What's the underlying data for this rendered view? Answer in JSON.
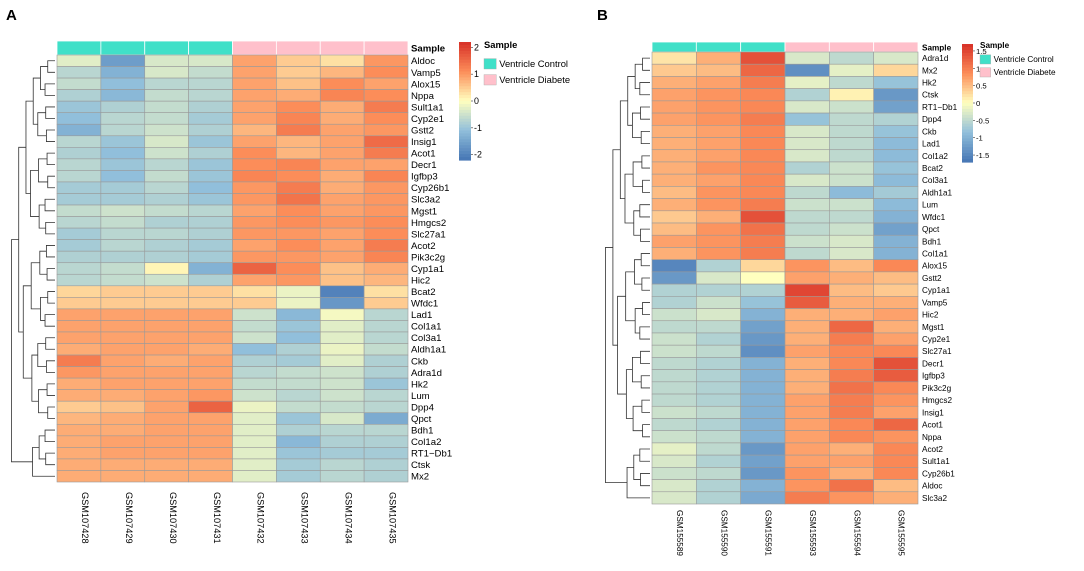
{
  "chart_data": [
    {
      "type": "heatmap",
      "panel_label": "A",
      "columns": [
        "GSM107428",
        "GSM107429",
        "GSM107430",
        "GSM107431",
        "GSM107432",
        "GSM107433",
        "GSM107434",
        "GSM107435"
      ],
      "column_groups": [
        "Ventricle Control",
        "Ventricle Control",
        "Ventricle Control",
        "Ventricle Control",
        "Ventricle Diabete",
        "Ventricle Diabete",
        "Ventricle Diabete",
        "Ventricle Diabete"
      ],
      "annotation_title": "Sample",
      "legend_title": "Sample",
      "legend_entries": [
        {
          "label": "Ventricle Control",
          "color": "#40e0c8"
        },
        {
          "label": "Ventricle Diabete",
          "color": "#ffc0cb"
        }
      ],
      "colorbar": {
        "ticks": [
          2,
          1,
          0,
          -1,
          -2
        ],
        "range": [
          -2.2,
          2.2
        ]
      },
      "rows": [
        "Aldoc",
        "Vamp5",
        "Alox15",
        "Nppa",
        "Sult1a1",
        "Cyp2e1",
        "Gstt2",
        "Insig1",
        "Acot1",
        "Decr1",
        "Igfbp3",
        "Cyp26b1",
        "Slc3a2",
        "Mgst1",
        "Hmgcs2",
        "Slc27a1",
        "Acot2",
        "Pik3c2g",
        "Cyp1a1",
        "Hic2",
        "Bcat2",
        "Wfdc1",
        "Lad1",
        "Col1a1",
        "Col3a1",
        "Aldh1a1",
        "Ckb",
        "Adra1d",
        "Hk2",
        "Lum",
        "Dpp4",
        "Qpct",
        "Bdh1",
        "Col1a2",
        "RT1−Db1",
        "Ctsk",
        "Mx2"
      ],
      "values": [
        [
          -0.3,
          -1.6,
          -0.4,
          -0.4,
          0.9,
          0.5,
          0.3,
          1.0
        ],
        [
          -0.7,
          -1.3,
          -0.4,
          -0.6,
          0.9,
          0.5,
          0.7,
          1.1
        ],
        [
          -0.6,
          -1.1,
          -0.7,
          -0.7,
          0.9,
          0.6,
          1.1,
          0.9
        ],
        [
          -0.8,
          -1.2,
          -0.6,
          -0.7,
          0.9,
          0.8,
          1.2,
          1.1
        ],
        [
          -1.0,
          -0.8,
          -0.6,
          -0.8,
          0.9,
          1.1,
          0.8,
          1.3
        ],
        [
          -1.1,
          -0.7,
          -0.6,
          -0.9,
          0.9,
          1.2,
          0.8,
          1.1
        ],
        [
          -1.3,
          -0.7,
          -0.5,
          -0.8,
          0.7,
          1.3,
          0.9,
          1.0
        ],
        [
          -0.7,
          -1.0,
          -0.4,
          -1.0,
          0.9,
          0.7,
          0.9,
          1.5
        ],
        [
          -0.8,
          -1.1,
          -0.5,
          -0.8,
          1.1,
          0.7,
          0.9,
          1.3
        ],
        [
          -0.7,
          -1.0,
          -0.7,
          -1.0,
          1.1,
          1.2,
          0.9,
          0.9
        ],
        [
          -0.7,
          -1.1,
          -0.6,
          -1.0,
          1.2,
          1.1,
          0.8,
          1.2
        ],
        [
          -0.9,
          -0.9,
          -0.7,
          -1.1,
          1.0,
          1.3,
          0.8,
          1.0
        ],
        [
          -0.9,
          -0.9,
          -0.8,
          -1.0,
          1.0,
          1.4,
          0.9,
          1.0
        ],
        [
          -0.6,
          -0.5,
          -0.6,
          -0.7,
          0.9,
          1.1,
          0.9,
          1.0
        ],
        [
          -0.7,
          -0.6,
          -0.8,
          -0.8,
          1.0,
          1.1,
          1.0,
          1.1
        ],
        [
          -0.9,
          -0.7,
          -0.7,
          -0.8,
          1.0,
          1.0,
          0.9,
          1.1
        ],
        [
          -0.9,
          -0.7,
          -0.8,
          -0.9,
          0.9,
          1.1,
          0.9,
          1.3
        ],
        [
          -0.8,
          -0.8,
          -0.8,
          -0.9,
          1.0,
          1.0,
          0.9,
          1.2
        ],
        [
          -0.7,
          -0.6,
          0.1,
          -1.3,
          1.6,
          1.1,
          0.6,
          0.8
        ],
        [
          -0.7,
          -0.6,
          -0.5,
          -0.8,
          0.9,
          1.0,
          0.6,
          0.7
        ],
        [
          0.4,
          0.5,
          0.5,
          0.5,
          0.3,
          -0.2,
          -2.0,
          0.3
        ],
        [
          0.5,
          0.5,
          0.5,
          0.5,
          0.5,
          -0.2,
          -1.7,
          0.5
        ],
        [
          0.9,
          0.9,
          0.9,
          0.9,
          -0.5,
          -1.2,
          -0.1,
          -0.7
        ],
        [
          0.9,
          0.9,
          0.9,
          0.9,
          -0.6,
          -1.0,
          -0.3,
          -0.7
        ],
        [
          0.9,
          0.9,
          0.9,
          0.9,
          -0.5,
          -1.1,
          -0.3,
          -0.7
        ],
        [
          0.8,
          0.9,
          0.9,
          0.8,
          -1.1,
          -0.8,
          -0.2,
          -0.6
        ],
        [
          1.3,
          0.9,
          0.8,
          0.9,
          -0.8,
          -0.9,
          -0.3,
          -0.8
        ],
        [
          1.0,
          0.9,
          0.9,
          0.9,
          -0.7,
          -0.6,
          -0.5,
          -0.8
        ],
        [
          0.8,
          0.9,
          0.9,
          0.9,
          -0.6,
          -0.6,
          -0.5,
          -1.0
        ],
        [
          0.8,
          0.8,
          0.9,
          1.0,
          -0.5,
          -0.7,
          -0.5,
          -0.7
        ],
        [
          0.5,
          0.6,
          0.9,
          1.6,
          -0.2,
          -0.6,
          -0.6,
          -0.7
        ],
        [
          0.7,
          0.8,
          0.9,
          0.9,
          -0.3,
          -1.0,
          -0.4,
          -1.4
        ],
        [
          0.8,
          0.8,
          0.9,
          0.9,
          -0.3,
          -0.8,
          -0.7,
          -0.7
        ],
        [
          0.8,
          0.9,
          0.9,
          0.9,
          -0.3,
          -1.2,
          -0.8,
          -0.8
        ],
        [
          0.8,
          0.9,
          0.9,
          0.9,
          -0.3,
          -1.0,
          -0.9,
          -0.9
        ],
        [
          0.8,
          0.8,
          0.8,
          0.8,
          -0.3,
          -0.9,
          -0.7,
          -0.8
        ],
        [
          0.8,
          0.8,
          0.8,
          0.8,
          -0.3,
          -0.9,
          -0.7,
          -0.8
        ]
      ]
    },
    {
      "type": "heatmap",
      "panel_label": "B",
      "columns": [
        "GSM155589",
        "GSM155590",
        "GSM155591",
        "GSM155593",
        "GSM155594",
        "GSM155595"
      ],
      "column_groups": [
        "Ventricle Control",
        "Ventricle Control",
        "Ventricle Control",
        "Ventricle Diabete",
        "Ventricle Diabete",
        "Ventricle Diabete"
      ],
      "annotation_title": "Sample",
      "legend_title": "Sample",
      "legend_entries": [
        {
          "label": "Ventricle Control",
          "color": "#40e0c8"
        },
        {
          "label": "Ventricle Diabete",
          "color": "#ffc0cb"
        }
      ],
      "colorbar": {
        "ticks": [
          1.5,
          1,
          0.5,
          0,
          -0.5,
          -1,
          -1.5
        ],
        "range": [
          -1.7,
          1.7
        ]
      },
      "rows": [
        "Adra1d",
        "Mx2",
        "Hk2",
        "Ctsk",
        "RT1−Db1",
        "Dpp4",
        "Ckb",
        "Lad1",
        "Col1a2",
        "Bcat2",
        "Col3a1",
        "Aldh1a1",
        "Lum",
        "Wfdc1",
        "Qpct",
        "Bdh1",
        "Col1a1",
        "Alox15",
        "Gstt2",
        "Cyp1a1",
        "Vamp5",
        "Hic2",
        "Mgst1",
        "Cyp2e1",
        "Slc27a1",
        "Decr1",
        "Igfbp3",
        "Pik3c2g",
        "Hmgcs2",
        "Insig1",
        "Acot1",
        "Nppa",
        "Acot2",
        "Sult1a1",
        "Cyp26b1",
        "Aldoc",
        "Slc3a2"
      ],
      "values": [
        [
          0.2,
          0.6,
          1.4,
          -0.3,
          -0.5,
          -0.3
        ],
        [
          0.4,
          0.5,
          1.2,
          -1.4,
          -0.2,
          0.3
        ],
        [
          0.6,
          0.7,
          1.0,
          -0.2,
          -0.5,
          -0.8
        ],
        [
          0.7,
          0.8,
          0.9,
          -0.6,
          0.1,
          -1.3
        ],
        [
          0.7,
          0.8,
          0.9,
          -0.3,
          -0.4,
          -1.2
        ],
        [
          0.7,
          0.8,
          1.0,
          -0.8,
          -0.5,
          -0.6
        ],
        [
          0.6,
          0.7,
          0.9,
          -0.3,
          -0.5,
          -0.8
        ],
        [
          0.6,
          0.7,
          0.9,
          -0.3,
          -0.5,
          -0.9
        ],
        [
          0.6,
          0.7,
          0.9,
          -0.3,
          -0.5,
          -0.9
        ],
        [
          0.6,
          0.8,
          0.9,
          -0.6,
          -0.4,
          -0.8
        ],
        [
          0.6,
          0.7,
          0.9,
          -0.3,
          -0.4,
          -0.9
        ],
        [
          0.5,
          0.8,
          0.9,
          -0.5,
          -0.9,
          -0.7
        ],
        [
          0.6,
          0.8,
          1.0,
          -0.4,
          -0.4,
          -0.9
        ],
        [
          0.4,
          0.6,
          1.4,
          -0.5,
          -0.5,
          -1.0
        ],
        [
          0.5,
          0.8,
          1.1,
          -0.5,
          -0.4,
          -1.2
        ],
        [
          0.7,
          0.8,
          1.0,
          -0.4,
          -0.3,
          -1.0
        ],
        [
          0.6,
          0.8,
          1.0,
          -0.5,
          -0.3,
          -1.0
        ],
        [
          -1.5,
          -0.6,
          0.3,
          0.8,
          0.5,
          0.9
        ],
        [
          -1.3,
          -0.3,
          0.0,
          0.7,
          0.6,
          0.5
        ],
        [
          -0.6,
          -0.6,
          -0.6,
          1.5,
          0.5,
          0.4
        ],
        [
          -0.6,
          -0.4,
          -0.8,
          1.3,
          0.6,
          0.6
        ],
        [
          -0.4,
          -0.3,
          -1.0,
          0.6,
          0.6,
          0.7
        ],
        [
          -0.5,
          -0.5,
          -1.2,
          0.6,
          1.2,
          0.6
        ],
        [
          -0.4,
          -0.6,
          -1.3,
          0.6,
          1.0,
          0.7
        ],
        [
          -0.4,
          -0.5,
          -1.4,
          0.7,
          0.9,
          0.9
        ],
        [
          -0.5,
          -0.6,
          -1.0,
          0.6,
          0.9,
          1.4
        ],
        [
          -0.5,
          -0.6,
          -1.0,
          0.6,
          1.0,
          1.3
        ],
        [
          -0.5,
          -0.6,
          -1.0,
          0.6,
          1.1,
          0.9
        ],
        [
          -0.5,
          -0.6,
          -1.0,
          0.7,
          1.0,
          0.8
        ],
        [
          -0.4,
          -0.5,
          -1.0,
          0.7,
          1.0,
          0.7
        ],
        [
          -0.5,
          -0.6,
          -1.0,
          0.7,
          0.9,
          1.2
        ],
        [
          -0.4,
          -0.5,
          -1.0,
          0.7,
          0.9,
          0.8
        ],
        [
          -0.2,
          -0.5,
          -1.3,
          0.7,
          0.6,
          0.9
        ],
        [
          -0.3,
          -0.6,
          -1.2,
          0.7,
          0.7,
          0.9
        ],
        [
          -0.4,
          -0.5,
          -1.3,
          0.8,
          0.6,
          0.9
        ],
        [
          -0.3,
          -0.6,
          -1.0,
          0.8,
          1.1,
          0.5
        ],
        [
          -0.3,
          -0.6,
          -1.1,
          1.0,
          0.8,
          0.6
        ]
      ]
    }
  ]
}
